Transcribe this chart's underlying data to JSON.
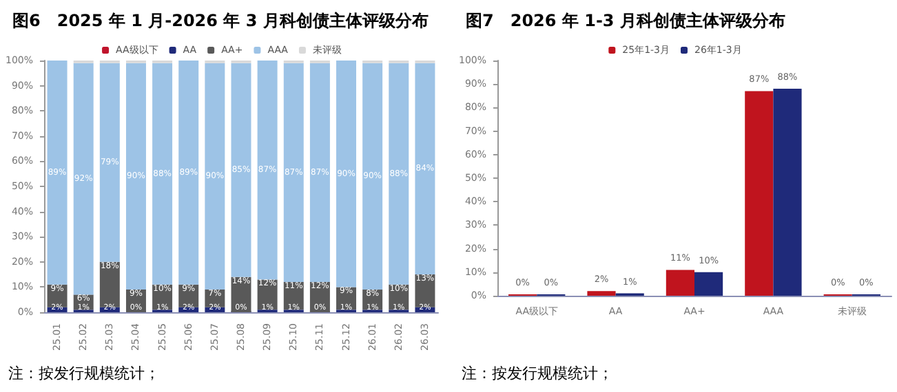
{
  "chart_data": [
    {
      "type": "bar",
      "title": "图6　2025 年 1 月-2026 年 3 月科创债主体评级分布",
      "stacked": true,
      "legend": "top",
      "categories": [
        "25.01",
        "25.02",
        "25.03",
        "25.04",
        "25.05",
        "25.06",
        "25.07",
        "25.08",
        "25.09",
        "25.10",
        "25.11",
        "25.12",
        "26.01",
        "26.02",
        "26.03"
      ],
      "series": [
        {
          "name": "AA级以下",
          "color": "#c0142c",
          "values": [
            0,
            0,
            0,
            0,
            0,
            0,
            0,
            0,
            0,
            0,
            0,
            0,
            0,
            0,
            0
          ]
        },
        {
          "name": "AA",
          "color": "#1f2a7a",
          "values": [
            2,
            1,
            2,
            0,
            1,
            2,
            2,
            0,
            1,
            1,
            0,
            1,
            1,
            1,
            2
          ],
          "value_labels": [
            "2%",
            "1%",
            "2%",
            "0%",
            "1%",
            "2%",
            "2%",
            "0%",
            "1%",
            "1%",
            "0%",
            "1%",
            "1%",
            "1%",
            "2%"
          ]
        },
        {
          "name": "AA+",
          "color": "#595959",
          "values": [
            9,
            6,
            18,
            9,
            10,
            9,
            7,
            14,
            12,
            11,
            12,
            9,
            8,
            10,
            13
          ],
          "value_labels": [
            "9%",
            "6%",
            "18%",
            "9%",
            "10%",
            "9%",
            "7%",
            "14%",
            "12%",
            "11%",
            "12%",
            "9%",
            "8%",
            "10%",
            "13%"
          ]
        },
        {
          "name": "AAA",
          "color": "#9dc3e6",
          "values": [
            89,
            92,
            79,
            90,
            88,
            89,
            90,
            85,
            87,
            87,
            87,
            90,
            90,
            88,
            84
          ],
          "value_labels": [
            "89%",
            "92%",
            "79%",
            "90%",
            "88%",
            "89%",
            "90%",
            "85%",
            "87%",
            "87%",
            "87%",
            "90%",
            "90%",
            "88%",
            "84%"
          ]
        },
        {
          "name": "未评级",
          "color": "#d9d9d9",
          "values": [
            0,
            1,
            1,
            1,
            1,
            0,
            1,
            1,
            0,
            1,
            1,
            0,
            1,
            1,
            1
          ]
        }
      ],
      "ylim": [
        0,
        100
      ],
      "yticks": [
        {
          "value": 0,
          "label": "0%"
        },
        {
          "value": 10,
          "label": "10%"
        },
        {
          "value": 20,
          "label": "20%"
        },
        {
          "value": 30,
          "label": "30%"
        },
        {
          "value": 40,
          "label": "40%"
        },
        {
          "value": 50,
          "label": "50%"
        },
        {
          "value": 60,
          "label": "60%"
        },
        {
          "value": 70,
          "label": "70%"
        },
        {
          "value": 80,
          "label": "80%"
        },
        {
          "value": 90,
          "label": "90%"
        },
        {
          "value": 100,
          "label": "100%"
        }
      ],
      "annotations": [
        "注：按发行规模统计；"
      ]
    },
    {
      "type": "bar",
      "title": "图7　2026 年 1-3 月科创债主体评级分布",
      "legend": "top",
      "categories": [
        "AA级以下",
        "AA",
        "AA+",
        "AAA",
        "未评级"
      ],
      "series": [
        {
          "name": "25年1-3月",
          "color": "#c0141e",
          "values": [
            0,
            2,
            11,
            87,
            0
          ],
          "value_labels": [
            "0%",
            "2%",
            "11%",
            "87%",
            "0%"
          ]
        },
        {
          "name": "26年1-3月",
          "color": "#1f2a7a",
          "values": [
            0,
            1,
            10,
            88,
            0
          ],
          "value_labels": [
            "0%",
            "1%",
            "10%",
            "88%",
            "0%"
          ]
        }
      ],
      "ylim": [
        0,
        100
      ],
      "yticks": [
        {
          "value": 0,
          "label": "0%"
        },
        {
          "value": 10,
          "label": "10%"
        },
        {
          "value": 20,
          "label": "20%"
        },
        {
          "value": 30,
          "label": "30%"
        },
        {
          "value": 40,
          "label": "40%"
        },
        {
          "value": 50,
          "label": "50%"
        },
        {
          "value": 60,
          "label": "60%"
        },
        {
          "value": 70,
          "label": "70%"
        },
        {
          "value": 80,
          "label": "80%"
        },
        {
          "value": 90,
          "label": "90%"
        },
        {
          "value": 100,
          "label": "100%"
        }
      ],
      "annotations": [
        "注：按发行规模统计；"
      ]
    }
  ]
}
